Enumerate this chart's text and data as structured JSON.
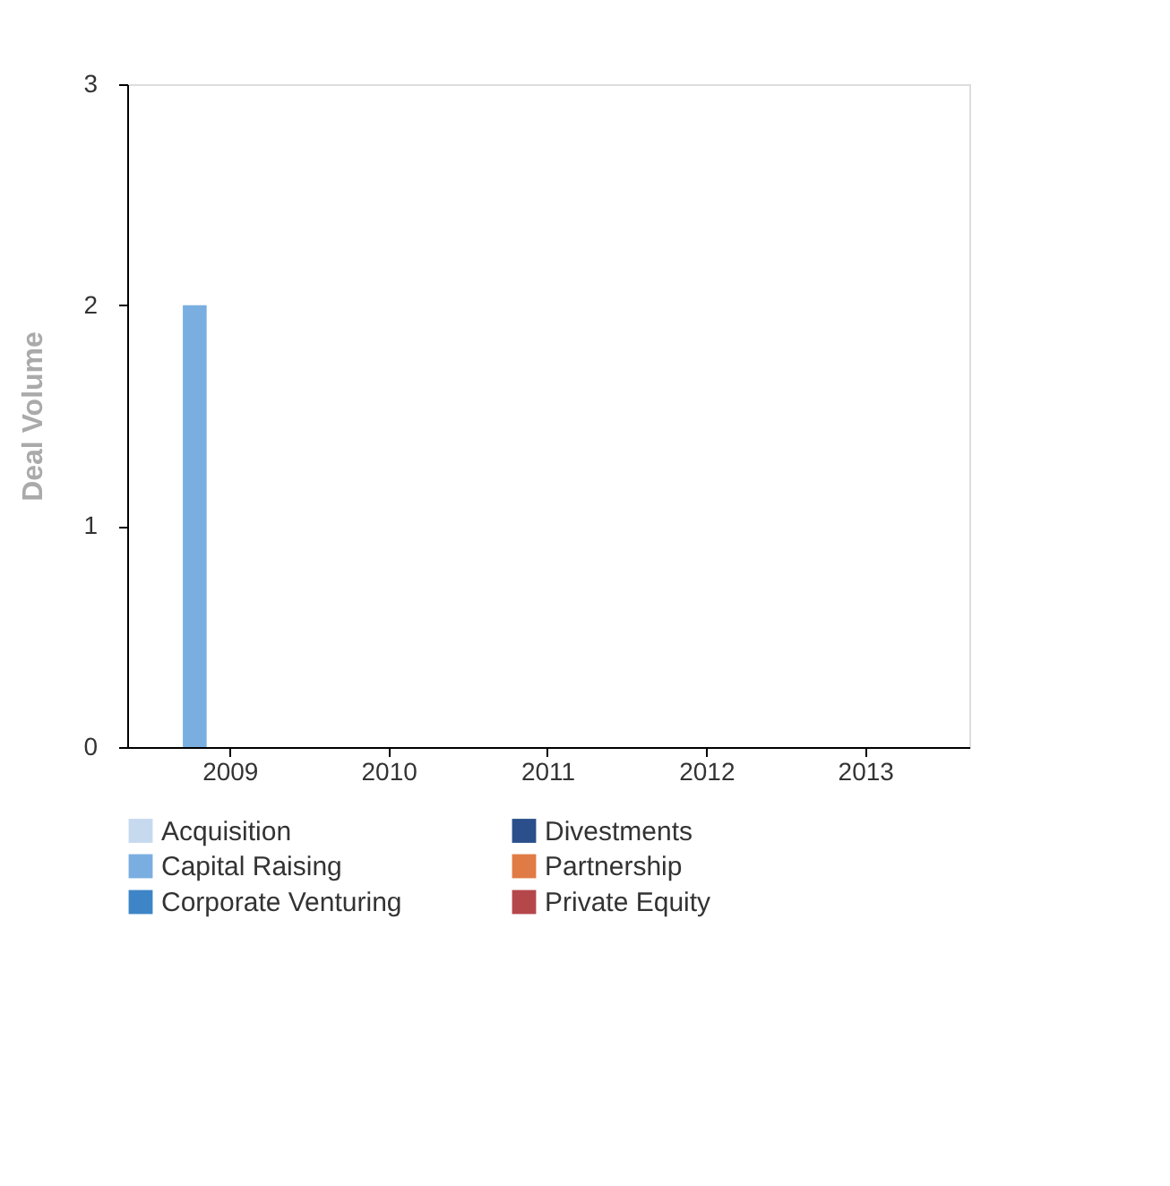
{
  "chart_data": {
    "type": "bar",
    "categories": [
      "2009",
      "2010",
      "2011",
      "2012",
      "2013"
    ],
    "ylabel": "Deal Volume",
    "ylim": [
      0,
      3
    ],
    "yticks": [
      0,
      1,
      2,
      3
    ],
    "grid": false,
    "legend": "bottom",
    "series": [
      {
        "name": "Acquisition",
        "color": "#c6d9ef",
        "values": [
          0,
          0,
          0,
          0,
          0
        ]
      },
      {
        "name": "Capital Raising",
        "color": "#7aaee0",
        "values": [
          2,
          0,
          0,
          0,
          0
        ]
      },
      {
        "name": "Corporate Venturing",
        "color": "#3d85c6",
        "values": [
          0,
          0,
          0,
          0,
          0
        ]
      },
      {
        "name": "Divestments",
        "color": "#2a4f8a",
        "values": [
          0,
          0,
          0,
          0,
          0
        ]
      },
      {
        "name": "Partnership",
        "color": "#e07b45",
        "values": [
          0,
          0,
          0,
          0,
          0
        ]
      },
      {
        "name": "Private Equity",
        "color": "#b5474b",
        "values": [
          0,
          0,
          0,
          0,
          0
        ]
      }
    ]
  }
}
